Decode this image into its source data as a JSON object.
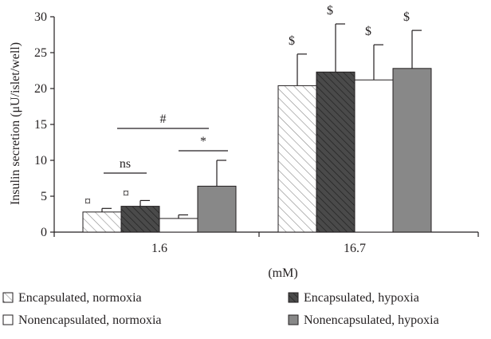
{
  "chart_data": {
    "type": "bar",
    "title": "",
    "ylabel": "Insulin secretion (μU/islet/well)",
    "xlabel": "(mM)",
    "categories": [
      "1.6",
      "16.7"
    ],
    "ylim": [
      0,
      30
    ],
    "yticks": [
      "0",
      "5",
      "10",
      "15",
      "20",
      "25",
      "30"
    ],
    "grid": false,
    "legend_position": "bottom",
    "series": [
      {
        "name": "Encapsulated, normoxia",
        "pattern": "hatched-light",
        "values": [
          2.8,
          20.4
        ],
        "errors": [
          0.5,
          4.4
        ],
        "markers": [
          "¤",
          "$"
        ]
      },
      {
        "name": "Encapsulated, hypoxia",
        "pattern": "hatched-dark",
        "values": [
          3.6,
          22.3
        ],
        "errors": [
          0.8,
          6.7
        ],
        "markers": [
          "¤",
          "$"
        ]
      },
      {
        "name": "Nonencapsulated, normoxia",
        "pattern": "white",
        "values": [
          1.9,
          21.2
        ],
        "errors": [
          0.5,
          4.9
        ],
        "markers": [
          "",
          "$"
        ]
      },
      {
        "name": "Nonencapsulated, hypoxia",
        "pattern": "solid-gray",
        "values": [
          6.4,
          22.8
        ],
        "errors": [
          3.6,
          5.3
        ],
        "markers": [
          "",
          "$"
        ]
      }
    ],
    "comparisons": [
      {
        "label": "ns",
        "category": "1.6",
        "series": [
          0,
          1
        ]
      },
      {
        "label": "#",
        "category": "1.6",
        "series": [
          0,
          3
        ]
      },
      {
        "label": "*",
        "category": "1.6",
        "series": [
          2,
          3
        ]
      }
    ]
  },
  "colors": {
    "axis": "#231f20",
    "dark_fill": "#4a4a4a",
    "gray_fill": "#888888",
    "hatch_light": "#8a8a8a"
  }
}
